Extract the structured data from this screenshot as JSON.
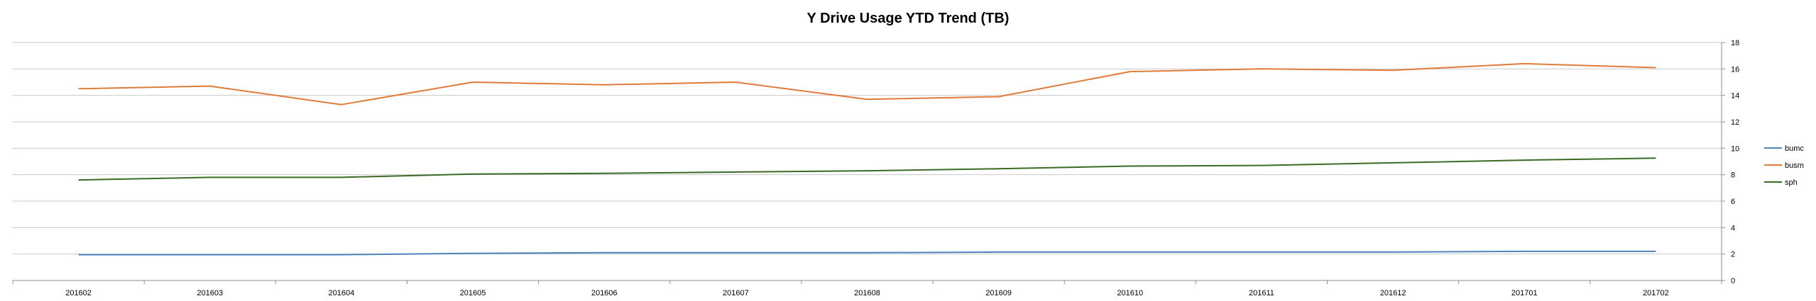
{
  "chart_data": {
    "type": "line",
    "title": "Y Drive Usage YTD Trend (TB)",
    "xlabel": "",
    "ylabel": "",
    "categories": [
      "201602",
      "201603",
      "201604",
      "201605",
      "201606",
      "201607",
      "201608",
      "201609",
      "201610",
      "201611",
      "201612",
      "201701",
      "201702"
    ],
    "ylim": [
      0,
      18
    ],
    "yticks": [
      0,
      2,
      4,
      6,
      8,
      10,
      12,
      14,
      16,
      18
    ],
    "y_axis_side": "right",
    "grid": true,
    "legend_position": "right",
    "series": [
      {
        "name": "bumc",
        "color": "#4f81bd",
        "values": [
          1.95,
          1.95,
          1.95,
          2.05,
          2.1,
          2.1,
          2.1,
          2.15,
          2.15,
          2.15,
          2.15,
          2.2,
          2.2
        ]
      },
      {
        "name": "busm",
        "color": "#e07b39",
        "values": [
          14.5,
          14.7,
          13.3,
          15.0,
          14.8,
          15.0,
          13.7,
          13.9,
          15.8,
          16.0,
          15.9,
          16.4,
          16.1
        ]
      },
      {
        "name": "sph",
        "color": "#3a6b24",
        "values": [
          7.6,
          7.8,
          7.8,
          8.05,
          8.1,
          8.2,
          8.3,
          8.45,
          8.65,
          8.7,
          8.9,
          9.1,
          9.25
        ]
      }
    ]
  }
}
